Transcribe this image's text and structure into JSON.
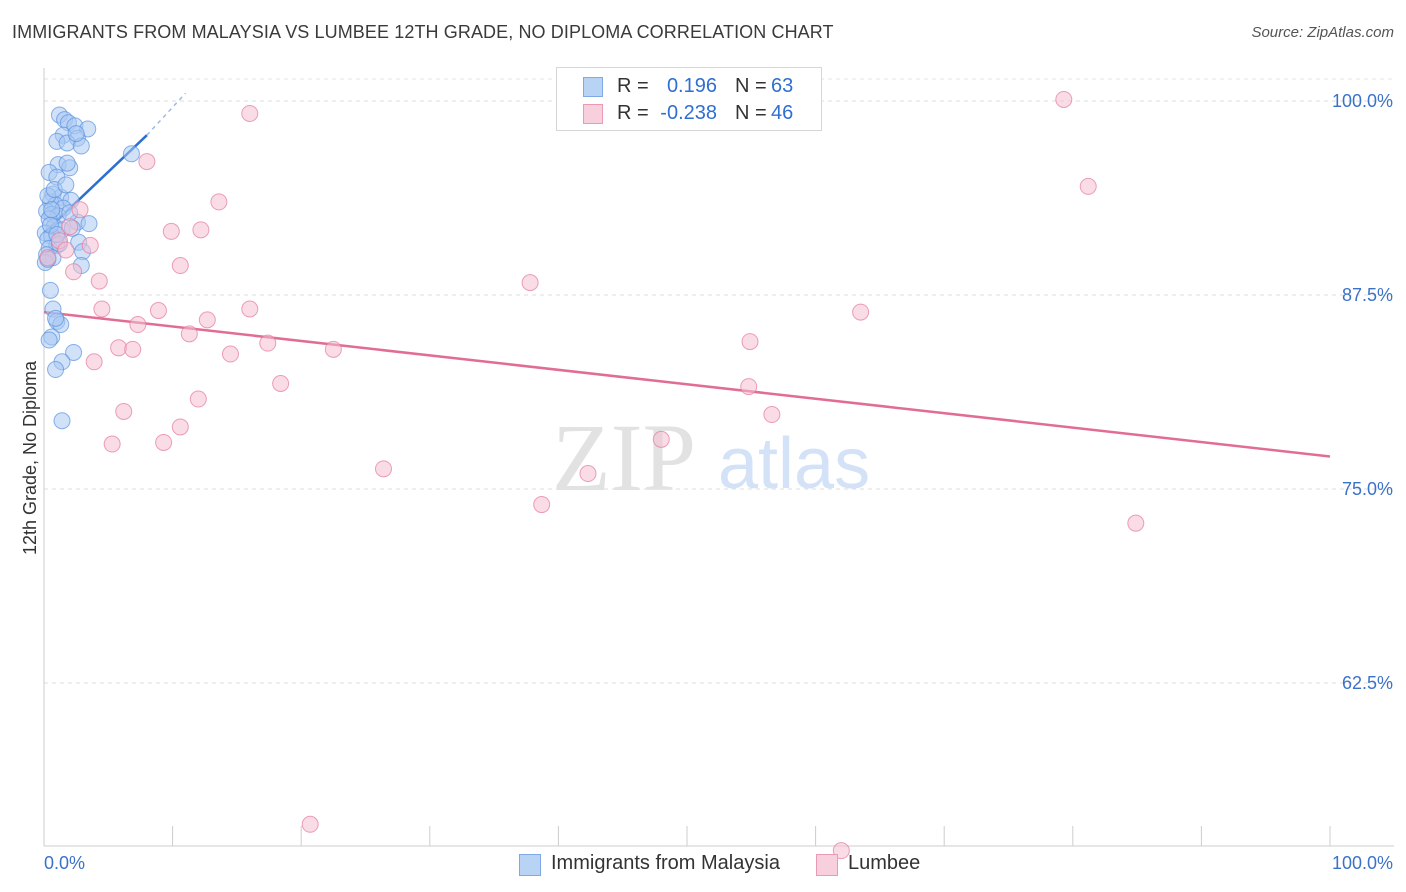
{
  "title": "IMMIGRANTS FROM MALAYSIA VS LUMBEE 12TH GRADE, NO DIPLOMA CORRELATION CHART",
  "source": "Source: ZipAtlas.com",
  "watermark": {
    "zip": "ZIP",
    "atlas": "atlas"
  },
  "legend_top": {
    "rows": [
      {
        "r_label": "R =",
        "r_value": "0.196",
        "n_label": "N =",
        "n_value": "63"
      },
      {
        "r_label": "R =",
        "r_value": "-0.238",
        "n_label": "N =",
        "n_value": "46"
      }
    ]
  },
  "legend_bottom": [
    "Immigrants from Malaysia",
    "Lumbee"
  ],
  "chart_data": {
    "type": "scatter",
    "title": "IMMIGRANTS FROM MALAYSIA VS LUMBEE 12TH GRADE, NO DIPLOMA CORRELATION CHART",
    "xlabel": "",
    "ylabel": "12th Grade, No Diploma",
    "xlim": [
      0,
      100
    ],
    "ylim": [
      52.0,
      102.0
    ],
    "x_tick_labels": [
      {
        "value": 0,
        "label": "0.0%"
      },
      {
        "value": 100,
        "label": "100.0%"
      }
    ],
    "y_tick_labels": [
      {
        "value": 100.0,
        "label": "100.0%"
      },
      {
        "value": 87.5,
        "label": "87.5%"
      },
      {
        "value": 75.0,
        "label": "75.0%"
      },
      {
        "value": 62.5,
        "label": "62.5%"
      }
    ],
    "grid": true,
    "series": [
      {
        "name": "Immigrants from Malaysia",
        "color": "#5b93e0",
        "fill": "#a9c8f2",
        "trend": {
          "x0": 0.0,
          "y0": 91.5,
          "x1": 8.0,
          "y1": 97.8,
          "dash_to_x": 11.0,
          "dash_to_y": 100.5
        },
        "points": [
          [
            1.2,
            99.1
          ],
          [
            1.6,
            98.8
          ],
          [
            1.9,
            98.6
          ],
          [
            2.4,
            98.4
          ],
          [
            3.4,
            98.2
          ],
          [
            1.5,
            97.8
          ],
          [
            2.6,
            97.6
          ],
          [
            1.0,
            97.4
          ],
          [
            1.8,
            97.3
          ],
          [
            2.9,
            97.1
          ],
          [
            6.8,
            96.6
          ],
          [
            1.1,
            95.9
          ],
          [
            2.0,
            95.7
          ],
          [
            0.4,
            95.4
          ],
          [
            1.0,
            95.1
          ],
          [
            0.7,
            94.0
          ],
          [
            1.3,
            93.8
          ],
          [
            2.1,
            93.6
          ],
          [
            0.5,
            93.5
          ],
          [
            0.9,
            93.3
          ],
          [
            1.5,
            93.1
          ],
          [
            0.2,
            92.9
          ],
          [
            0.6,
            92.7
          ],
          [
            1.1,
            92.6
          ],
          [
            0.4,
            92.4
          ],
          [
            2.6,
            92.2
          ],
          [
            3.5,
            92.1
          ],
          [
            0.8,
            91.9
          ],
          [
            1.4,
            91.7
          ],
          [
            0.1,
            91.5
          ],
          [
            0.6,
            91.3
          ],
          [
            0.3,
            91.1
          ],
          [
            2.7,
            90.9
          ],
          [
            1.0,
            90.7
          ],
          [
            0.4,
            90.5
          ],
          [
            3.0,
            90.3
          ],
          [
            0.2,
            90.1
          ],
          [
            0.7,
            89.9
          ],
          [
            0.1,
            89.6
          ],
          [
            2.9,
            89.4
          ],
          [
            0.5,
            87.8
          ],
          [
            0.7,
            86.6
          ],
          [
            1.0,
            85.8
          ],
          [
            1.3,
            85.6
          ],
          [
            0.6,
            84.8
          ],
          [
            0.4,
            84.6
          ],
          [
            2.3,
            83.8
          ],
          [
            1.4,
            83.2
          ],
          [
            0.9,
            82.7
          ],
          [
            1.4,
            79.4
          ],
          [
            0.3,
            93.9
          ],
          [
            0.8,
            94.3
          ],
          [
            1.7,
            94.6
          ],
          [
            0.5,
            92.0
          ],
          [
            2.2,
            91.8
          ],
          [
            1.2,
            90.8
          ],
          [
            0.9,
            86.0
          ],
          [
            0.3,
            89.8
          ],
          [
            1.8,
            96.0
          ],
          [
            2.5,
            97.9
          ],
          [
            0.6,
            93.0
          ],
          [
            1.0,
            91.4
          ],
          [
            2.0,
            92.8
          ]
        ]
      },
      {
        "name": "Lumbee",
        "color": "#e4799c",
        "fill": "#f4c0d2",
        "trend": {
          "x0": 0.0,
          "y0": 86.4,
          "x1": 100.0,
          "y1": 77.1
        },
        "points": [
          [
            79.3,
            100.1
          ],
          [
            16.0,
            99.2
          ],
          [
            8.0,
            96.1
          ],
          [
            81.2,
            94.5
          ],
          [
            13.6,
            93.5
          ],
          [
            2.8,
            93.0
          ],
          [
            9.9,
            91.6
          ],
          [
            12.2,
            91.7
          ],
          [
            1.2,
            91.0
          ],
          [
            3.6,
            90.7
          ],
          [
            1.7,
            90.4
          ],
          [
            0.3,
            89.9
          ],
          [
            10.6,
            89.4
          ],
          [
            2.3,
            89.0
          ],
          [
            4.3,
            88.4
          ],
          [
            37.8,
            88.3
          ],
          [
            16.0,
            86.6
          ],
          [
            4.5,
            86.6
          ],
          [
            8.9,
            86.5
          ],
          [
            63.5,
            86.4
          ],
          [
            12.7,
            85.9
          ],
          [
            7.3,
            85.6
          ],
          [
            11.3,
            85.0
          ],
          [
            17.4,
            84.4
          ],
          [
            54.9,
            84.5
          ],
          [
            5.8,
            84.1
          ],
          [
            6.9,
            84.0
          ],
          [
            22.5,
            84.0
          ],
          [
            14.5,
            83.7
          ],
          [
            3.9,
            83.2
          ],
          [
            18.4,
            81.8
          ],
          [
            54.8,
            81.6
          ],
          [
            12.0,
            80.8
          ],
          [
            6.2,
            80.0
          ],
          [
            56.6,
            79.8
          ],
          [
            10.6,
            79.0
          ],
          [
            48.0,
            78.2
          ],
          [
            9.3,
            78.0
          ],
          [
            5.3,
            77.9
          ],
          [
            26.4,
            76.3
          ],
          [
            42.3,
            76.0
          ],
          [
            38.7,
            74.0
          ],
          [
            84.9,
            72.8
          ],
          [
            20.7,
            53.4
          ],
          [
            62.0,
            51.7
          ],
          [
            2.0,
            91.9
          ]
        ]
      }
    ]
  }
}
